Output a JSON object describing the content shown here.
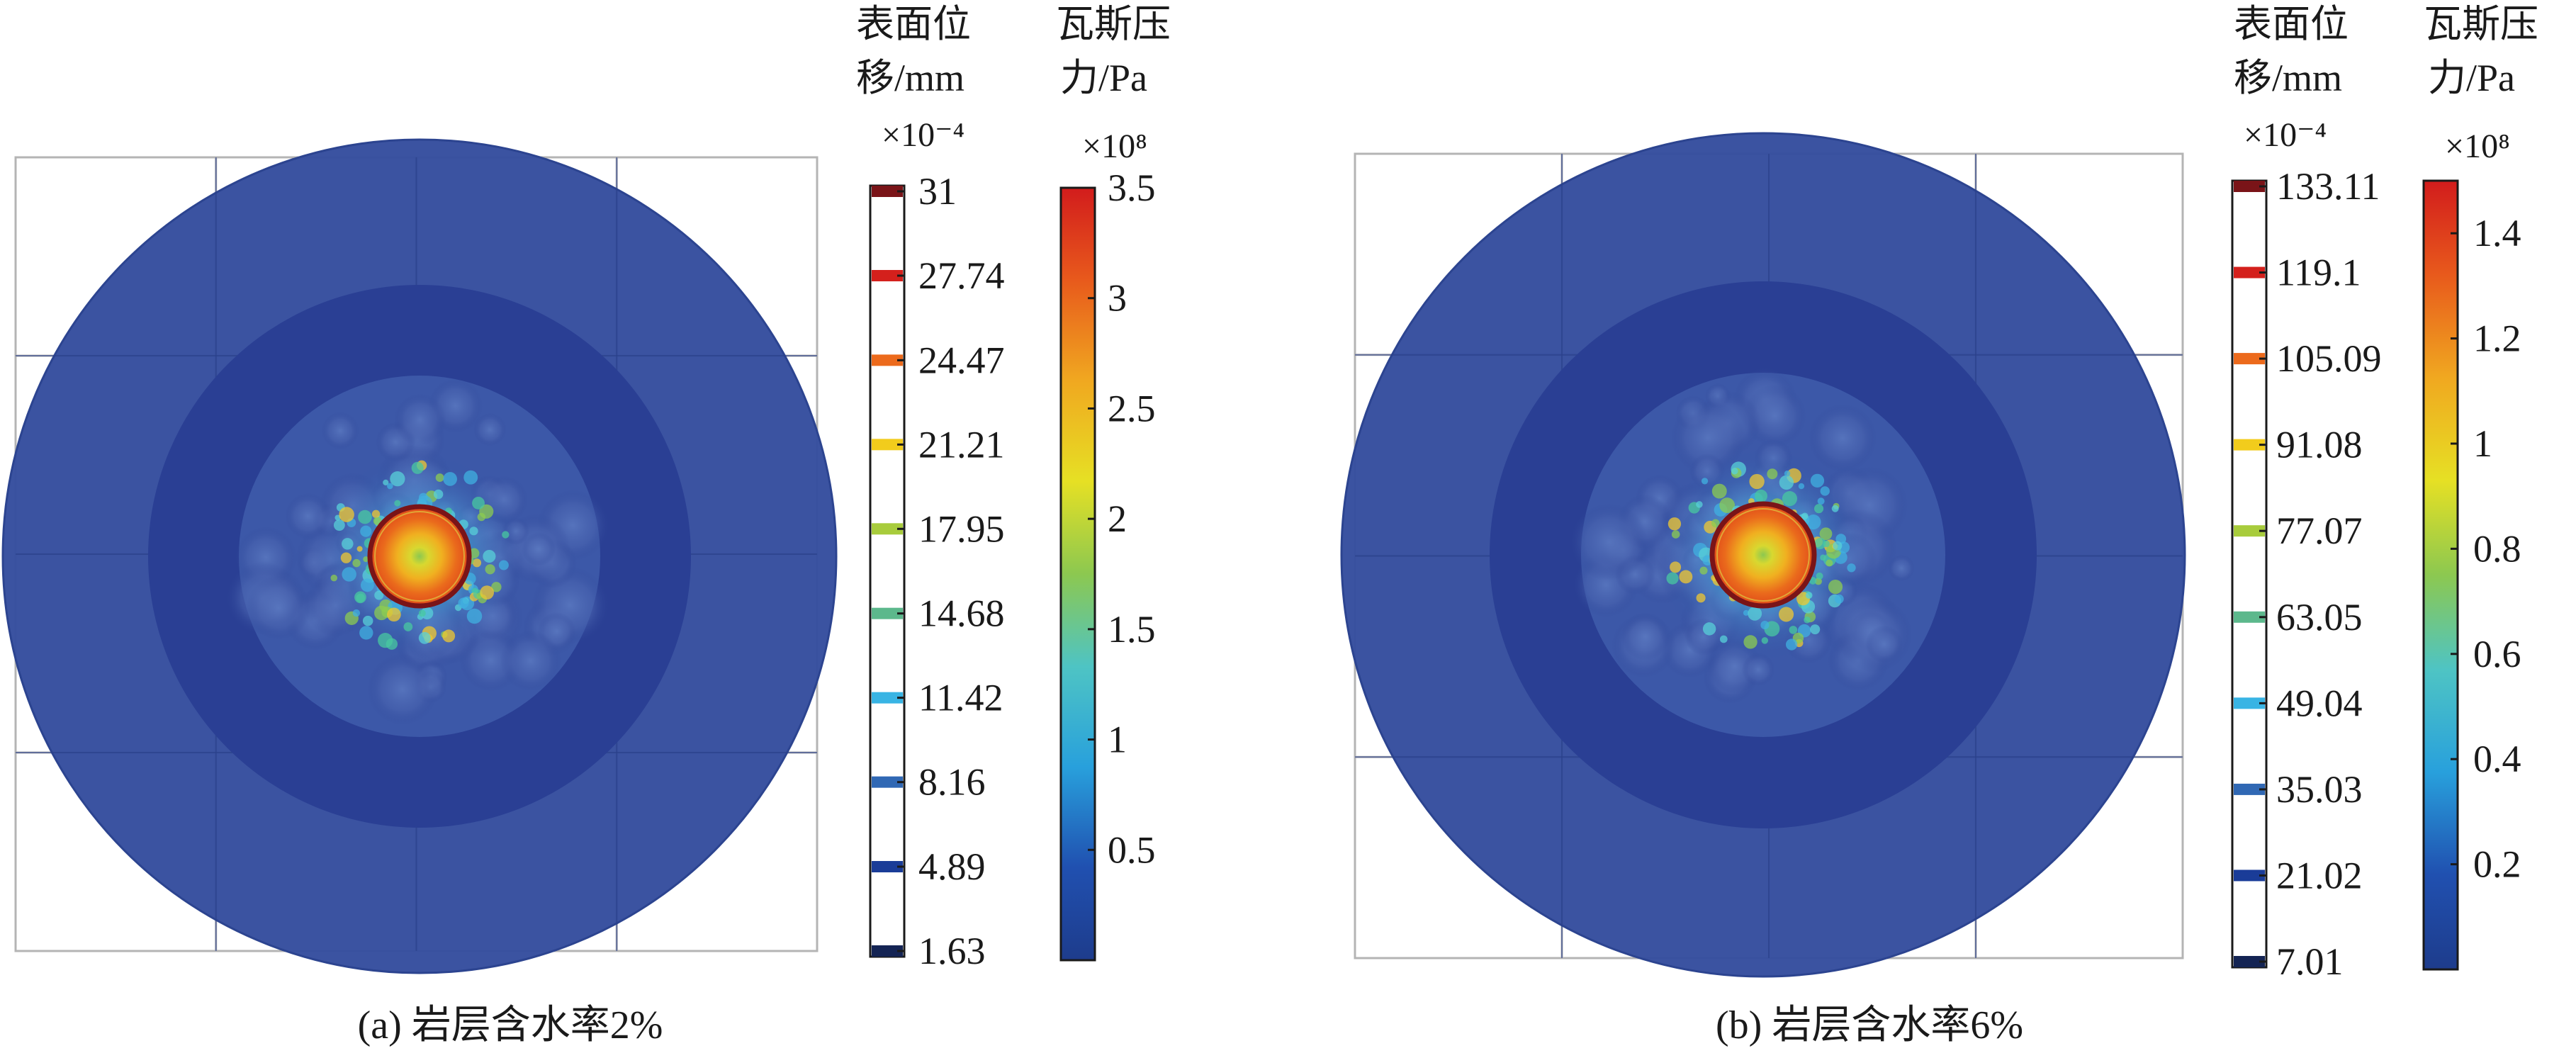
{
  "chart_data": [
    {
      "type": "heatmap",
      "caption": "(a) 岩层含水率2%",
      "displacement_legend": {
        "title_line1": "表面位",
        "title_line2": "移/mm",
        "exponent": "×10⁻⁴",
        "levels": [
          31,
          27.74,
          24.47,
          21.21,
          17.95,
          14.68,
          11.42,
          8.16,
          4.89,
          1.63
        ],
        "labels": [
          "31",
          "27.74",
          "24.47",
          "21.21",
          "17.95",
          "14.68",
          "11.42",
          "8.16",
          "4.89",
          "1.63"
        ],
        "colors": [
          "#7a1418",
          "#d4201c",
          "#ec6a1c",
          "#f2cc1c",
          "#a8cc3c",
          "#5cb88c",
          "#38b4e4",
          "#3068b4",
          "#1a3c98",
          "#142454"
        ]
      },
      "pressure_colorbar": {
        "title_line1": "瓦斯压",
        "title_line2": "力/Pa",
        "exponent": "×10⁸",
        "min": 0,
        "max": 3.5,
        "ticks": [
          3.5,
          3,
          2.5,
          2,
          1.5,
          1,
          0.5
        ],
        "tick_labels": [
          "3.5",
          "3",
          "2.5",
          "2",
          "1.5",
          "1",
          "0.5"
        ]
      }
    },
    {
      "type": "heatmap",
      "caption": "(b) 岩层含水率6%",
      "displacement_legend": {
        "title_line1": "表面位",
        "title_line2": "移/mm",
        "exponent": "×10⁻⁴",
        "levels": [
          133.11,
          119.1,
          105.09,
          91.08,
          77.07,
          63.05,
          49.04,
          35.03,
          21.02,
          7.01
        ],
        "labels": [
          "133.11",
          "119.1",
          "105.09",
          "91.08",
          "77.07",
          "63.05",
          "49.04",
          "35.03",
          "21.02",
          "7.01"
        ],
        "colors": [
          "#7a1418",
          "#d4201c",
          "#ec6a1c",
          "#f2cc1c",
          "#a8cc3c",
          "#5cb88c",
          "#38b4e4",
          "#3068b4",
          "#1a3c98",
          "#142454"
        ]
      },
      "pressure_colorbar": {
        "title_line1": "瓦斯压",
        "title_line2": "力/Pa",
        "exponent": "×10⁸",
        "min": 0,
        "max": 1.5,
        "ticks": [
          1.4,
          1.2,
          1,
          0.8,
          0.6,
          0.4,
          0.2
        ],
        "tick_labels": [
          "1.4",
          "1.2",
          "1",
          "0.8",
          "0.6",
          "0.4",
          "0.2"
        ]
      }
    }
  ]
}
